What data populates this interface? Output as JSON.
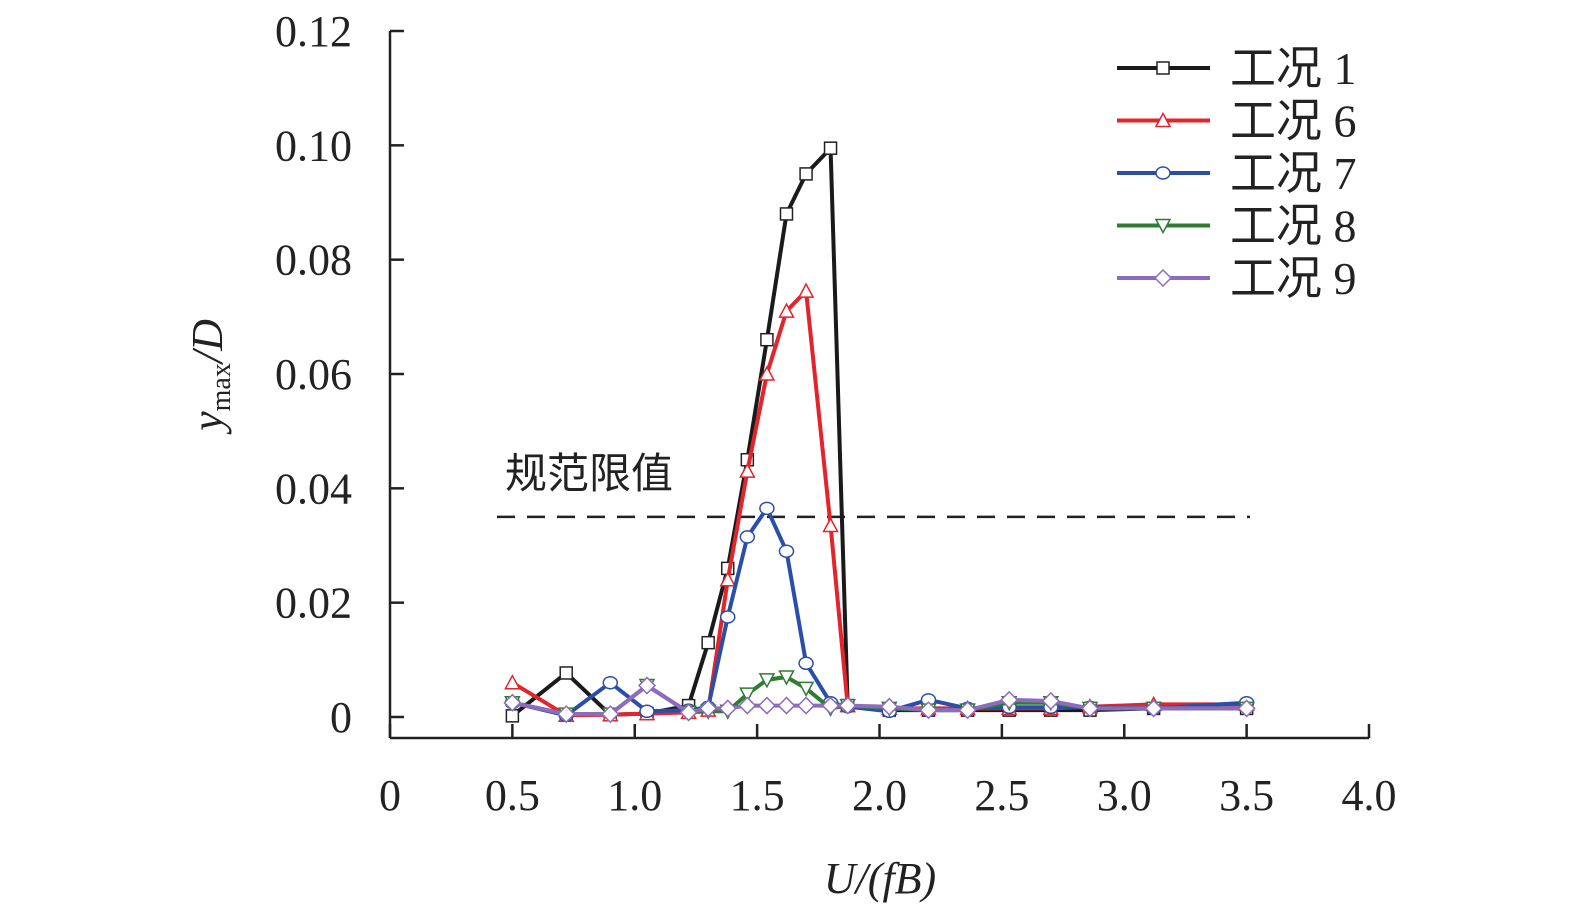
{
  "chart_data": {
    "type": "line",
    "xlabel": "U/(fB)",
    "ylabel": {
      "main": "y",
      "sub": "max",
      "rest": "/D"
    },
    "xlim": [
      0,
      4.0
    ],
    "ylim": [
      0,
      0.12
    ],
    "xticks": [
      "0",
      "0.5",
      "1.0",
      "1.5",
      "2.0",
      "2.5",
      "3.0",
      "3.5",
      "4.0"
    ],
    "yticks": [
      "0",
      "0.02",
      "0.04",
      "0.06",
      "0.08",
      "0.10",
      "0.12"
    ],
    "grid": false,
    "legend": "top-right",
    "reference_line": {
      "y": 0.035,
      "label": "规范限值",
      "style": "dashed",
      "color": "#222222"
    },
    "x": [
      0.5,
      0.72,
      0.9,
      1.05,
      1.22,
      1.3,
      1.38,
      1.46,
      1.54,
      1.62,
      1.7,
      1.8,
      1.87,
      2.04,
      2.2,
      2.36,
      2.53,
      2.7,
      2.86,
      3.12,
      3.5
    ],
    "series": [
      {
        "name": "工况 1",
        "color": "#1a1a1a",
        "marker": "square",
        "values": [
          0.0002,
          0.0077,
          0.0004,
          0.0006,
          0.002,
          0.013,
          0.026,
          0.045,
          0.066,
          0.088,
          0.095,
          0.0995,
          0.002,
          0.0012,
          0.0012,
          0.0012,
          0.0012,
          0.0012,
          0.0012,
          0.0015,
          0.0015
        ]
      },
      {
        "name": "工况 6",
        "color": "#e3242b",
        "marker": "triangle",
        "values": [
          0.006,
          0.0003,
          0.0004,
          0.0006,
          0.0008,
          0.0012,
          0.024,
          0.043,
          0.06,
          0.071,
          0.0745,
          0.0335,
          0.002,
          0.0015,
          0.0015,
          0.0015,
          0.0015,
          0.0015,
          0.0018,
          0.0022,
          0.0022
        ]
      },
      {
        "name": "工况 7",
        "color": "#2a4fa8",
        "marker": "circle",
        "values": [
          0.0025,
          0.0003,
          0.006,
          0.001,
          0.0012,
          0.0017,
          0.0175,
          0.0315,
          0.0365,
          0.029,
          0.0094,
          0.0025,
          0.0018,
          0.001,
          0.003,
          0.0015,
          0.0017,
          0.0017,
          0.0017,
          0.0015,
          0.0025
        ]
      },
      {
        "name": "工况 8",
        "color": "#2e7d32",
        "marker": "triangle-down",
        "values": [
          0.0025,
          0.0005,
          0.0005,
          0.0055,
          0.0008,
          0.001,
          0.001,
          0.004,
          0.0065,
          0.007,
          0.005,
          0.0015,
          0.002,
          0.0015,
          0.0012,
          0.0012,
          0.0025,
          0.0025,
          0.0015,
          0.0015,
          0.0015
        ]
      },
      {
        "name": "工况 9",
        "color": "#8e6bbf",
        "marker": "diamond",
        "values": [
          0.0025,
          0.0005,
          0.0005,
          0.0055,
          0.0008,
          0.0015,
          0.0015,
          0.002,
          0.002,
          0.002,
          0.002,
          0.002,
          0.002,
          0.0018,
          0.0012,
          0.0012,
          0.003,
          0.0028,
          0.0015,
          0.0015,
          0.0015
        ]
      }
    ]
  }
}
